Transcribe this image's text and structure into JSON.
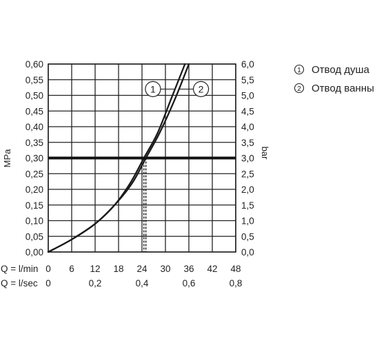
{
  "chart_data": {
    "type": "line",
    "y_left_label": "MPa",
    "y_right_label": "bar",
    "x_axis_rows": [
      {
        "label": "Q = l/min",
        "ticks": [
          "0",
          "6",
          "12",
          "18",
          "24",
          "30",
          "36",
          "42",
          "48"
        ],
        "values": [
          0,
          6,
          12,
          18,
          24,
          30,
          36,
          42,
          48
        ]
      },
      {
        "label": "Q = l/sec",
        "ticks": [
          "0",
          "0,2",
          "0,4",
          "0,6",
          "0,8"
        ],
        "values": [
          0,
          0.2,
          0.4,
          0.6,
          0.8
        ]
      }
    ],
    "x_unit": "l/min",
    "xlim": [
      0,
      48
    ],
    "ylim": [
      0,
      0.6
    ],
    "y_left_ticks": [
      "0,00",
      "0,05",
      "0,10",
      "0,15",
      "0,20",
      "0,25",
      "0,30",
      "0,35",
      "0,40",
      "0,45",
      "0,50",
      "0,55",
      "0,60"
    ],
    "y_right_ticks": [
      "0,0",
      "0,5",
      "1,0",
      "1,5",
      "2,0",
      "2,5",
      "3,0",
      "3,5",
      "4,0",
      "4,5",
      "5,0",
      "5,5",
      "6,0"
    ],
    "grid": true,
    "series": [
      {
        "name": "Отвод душа",
        "marker": "1",
        "x": [
          0,
          6,
          12,
          17,
          21,
          24.5,
          28,
          31.5,
          35
        ],
        "y": [
          0,
          0.04,
          0.09,
          0.15,
          0.22,
          0.3,
          0.38,
          0.49,
          0.6
        ]
      },
      {
        "name": "Отвод ванны",
        "marker": "2",
        "x": [
          0,
          6,
          12,
          17,
          21.5,
          25,
          28.5,
          32.5,
          36
        ],
        "y": [
          0,
          0.04,
          0.09,
          0.15,
          0.22,
          0.3,
          0.38,
          0.49,
          0.6
        ]
      }
    ],
    "reference_line": {
      "y": 0.3
    },
    "reference_drops": [
      24.5,
      25
    ]
  },
  "legend": [
    {
      "marker": "①",
      "text": "Отвод душа"
    },
    {
      "marker": "②",
      "text": "Отвод ванны"
    }
  ],
  "callouts": [
    "1",
    "2"
  ]
}
